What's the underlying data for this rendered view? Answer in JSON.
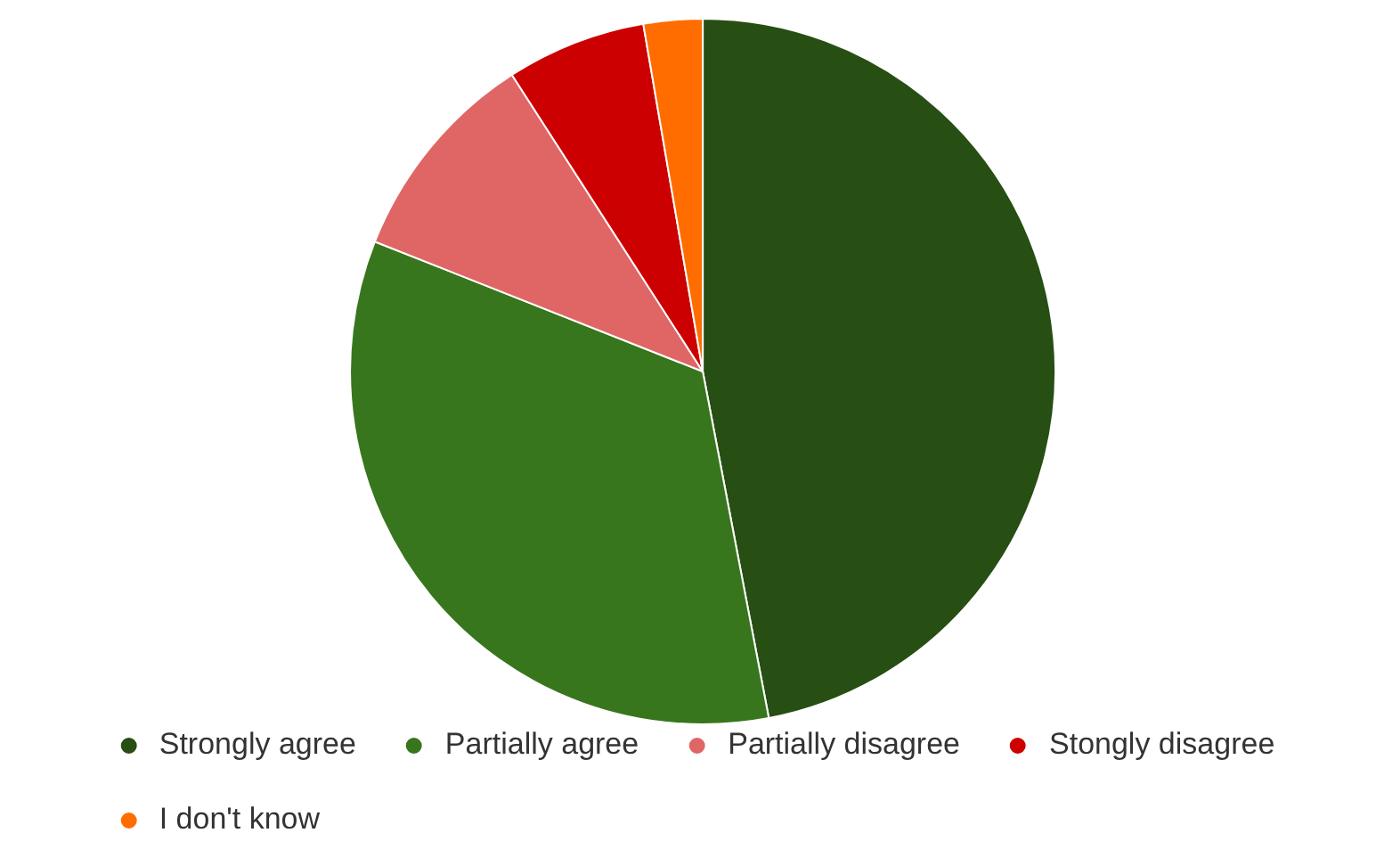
{
  "chart_data": {
    "type": "pie",
    "categories": [
      "Strongly agree",
      "Partially agree",
      "Partially disagree",
      "Stongly disagree",
      "I don't know"
    ],
    "values": [
      47,
      34,
      9.9,
      6.4,
      2.7
    ],
    "colors": [
      "#274e13",
      "#38761d",
      "#e06666",
      "#cc0000",
      "#ff6d01"
    ],
    "legend": "bottom"
  }
}
